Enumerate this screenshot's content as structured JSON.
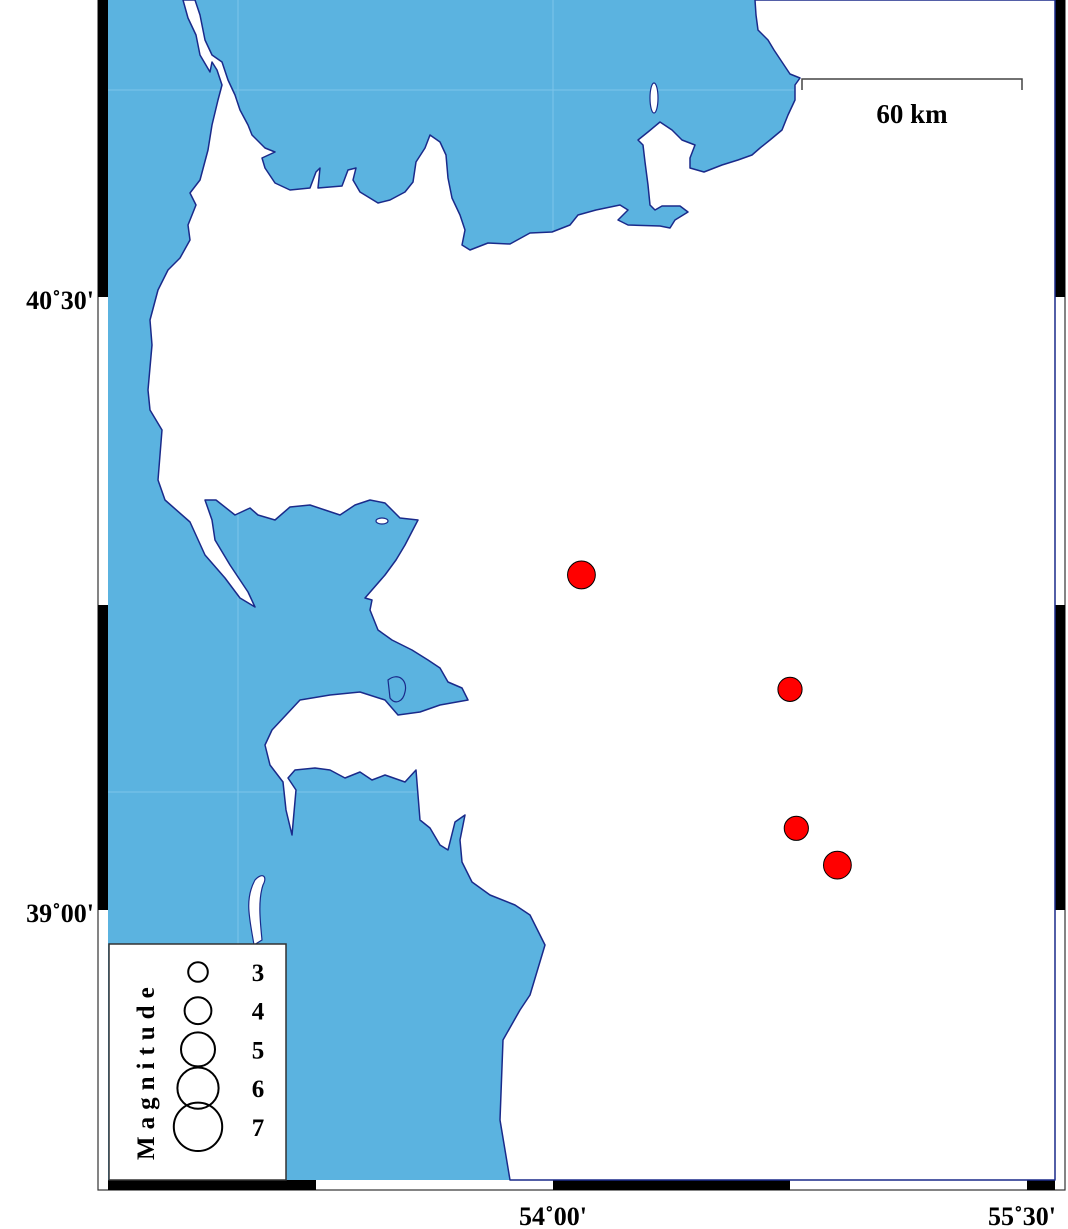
{
  "map": {
    "colors": {
      "land": "#5bb3e0",
      "sea": "#ffffff",
      "coastline": "#1a2a8a",
      "event": "#ff0000",
      "gridline": "#7cc4ea"
    },
    "lat_labels": [
      "40˚30'",
      "39˚00'"
    ],
    "lon_labels": [
      "54˚00'",
      "55˚30'"
    ],
    "scale_bar": {
      "label": "60 km"
    },
    "events": [
      {
        "lon": 54.09,
        "lat": 39.82,
        "magnitude": 4.0
      },
      {
        "lon": 54.75,
        "lat": 39.54,
        "magnitude": 3.5
      },
      {
        "lon": 54.77,
        "lat": 39.2,
        "magnitude": 3.5
      },
      {
        "lon": 54.9,
        "lat": 39.11,
        "magnitude": 4.0
      }
    ]
  },
  "legend": {
    "title": "Magnitude",
    "items": [
      {
        "label": "3",
        "magnitude": 3
      },
      {
        "label": "4",
        "magnitude": 4
      },
      {
        "label": "5",
        "magnitude": 5
      },
      {
        "label": "6",
        "magnitude": 6
      },
      {
        "label": "7",
        "magnitude": 7
      }
    ]
  }
}
